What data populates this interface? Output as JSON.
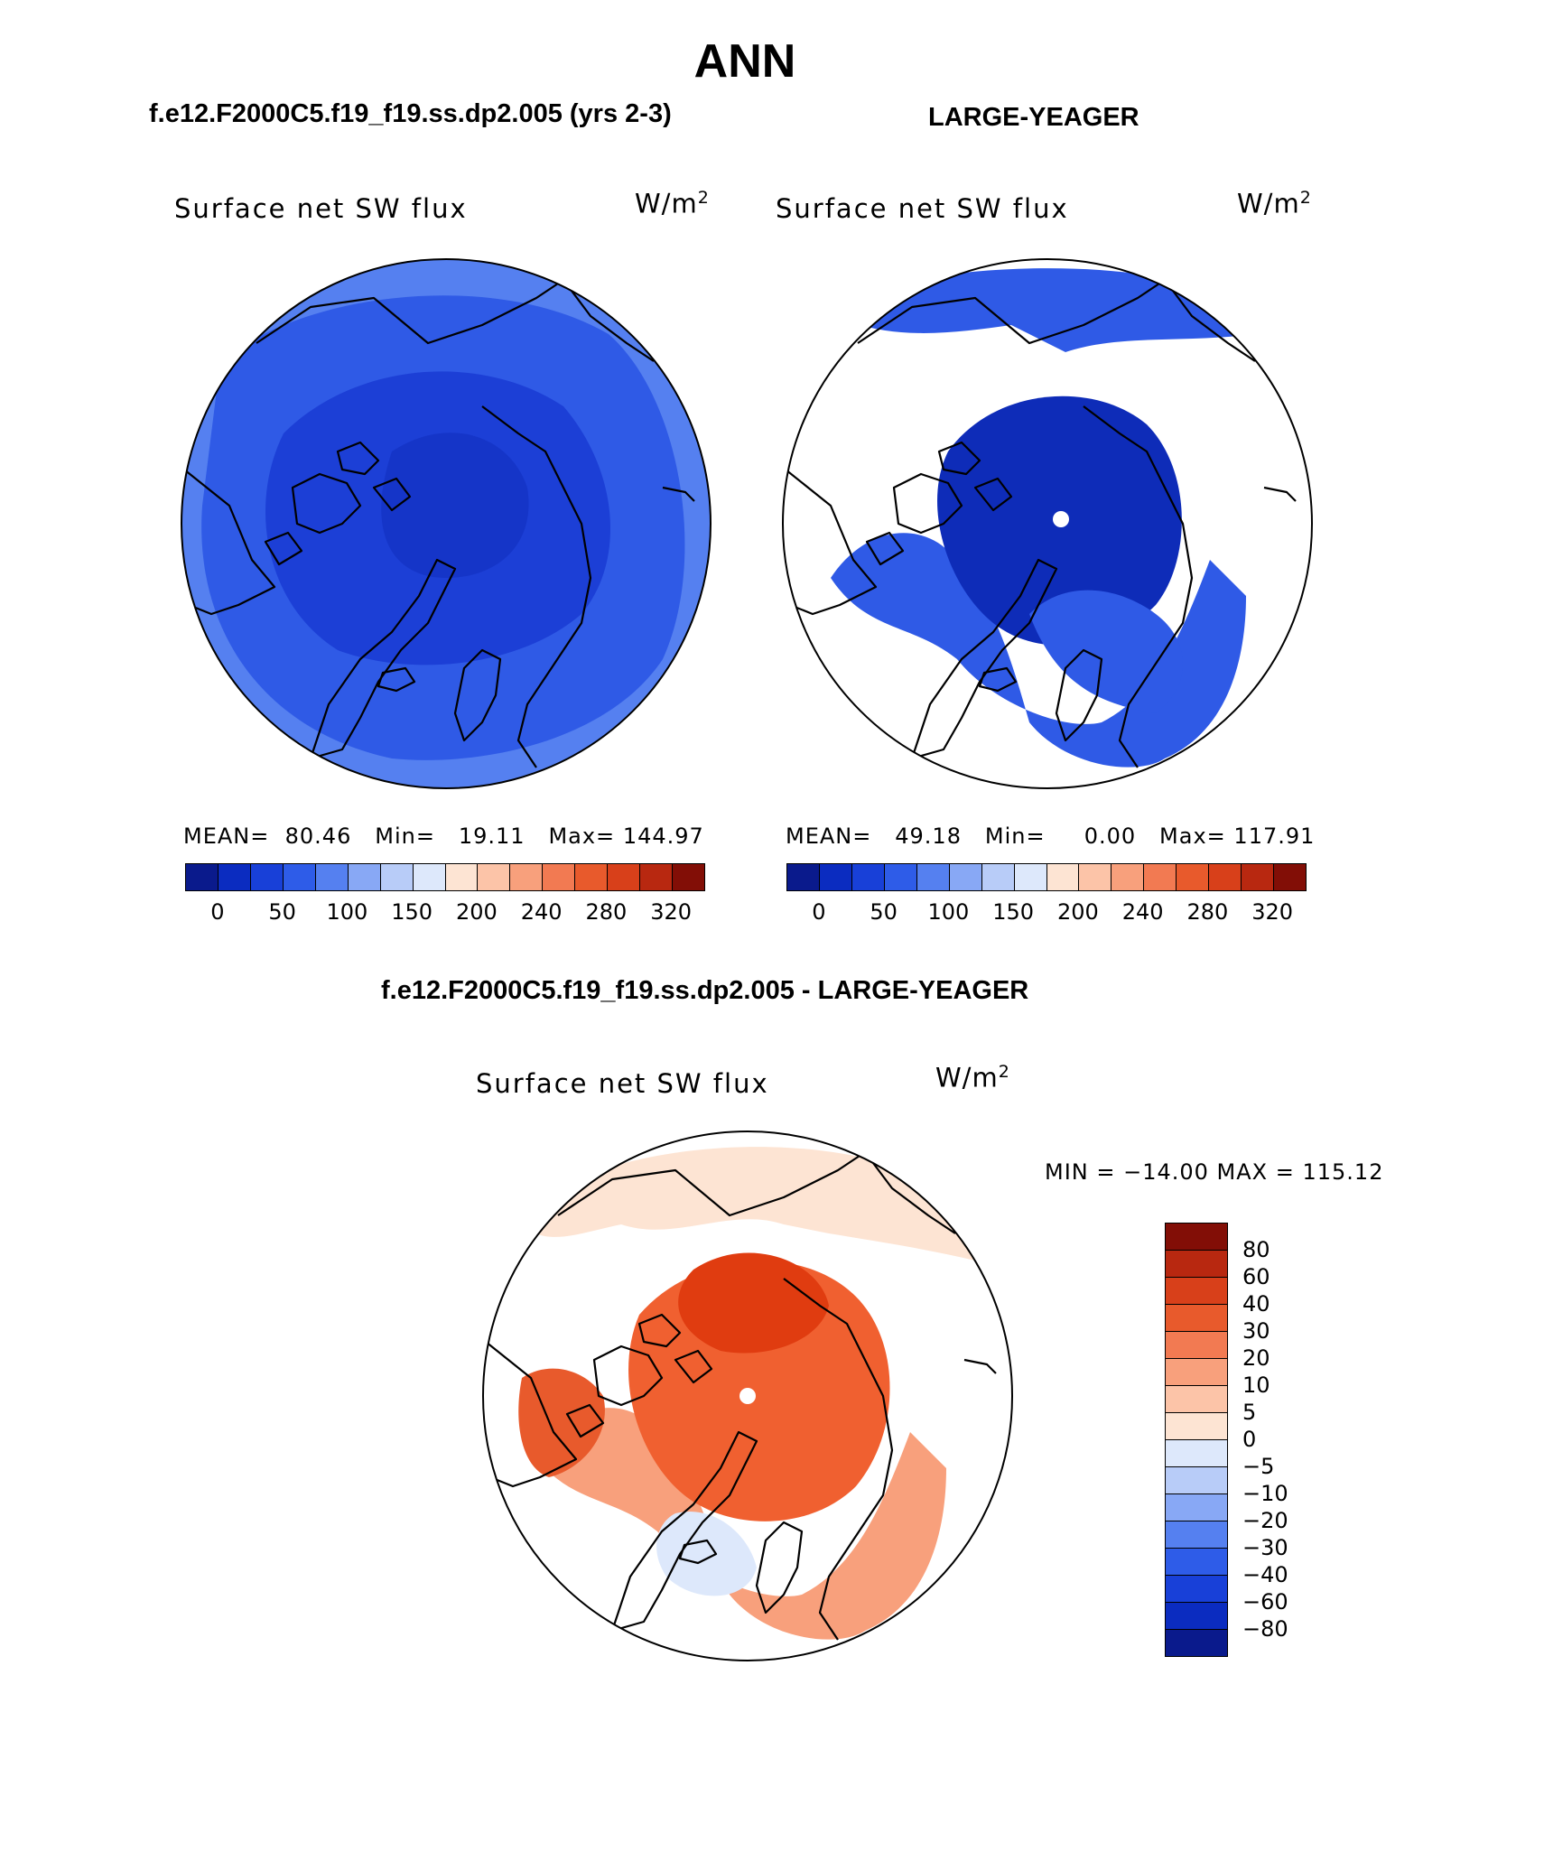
{
  "page_title": "ANN",
  "panels": [
    {
      "case": "f.e12.F2000C5.f19_f19.ss.dp2.005 (yrs 2-3)",
      "variable": "Surface net SW flux",
      "units": "W/m",
      "units_exp": "2",
      "mean_label": "MEAN=",
      "mean_value": "80.46",
      "min_label": "Min=",
      "min_value": "19.11",
      "max_label": "Max=",
      "max_value": "144.97"
    },
    {
      "case": "LARGE-YEAGER",
      "variable": "Surface net SW flux",
      "units": "W/m",
      "units_exp": "2",
      "mean_label": "MEAN=",
      "mean_value": "49.18",
      "min_label": "Min=",
      "min_value": "0.00",
      "max_label": "Max=",
      "max_value": "117.91"
    }
  ],
  "abs_colorbar": {
    "colors": [
      "#0a1a8c",
      "#0b2cc0",
      "#1840d8",
      "#2e5ce8",
      "#5580f0",
      "#88a8f5",
      "#b8ccf8",
      "#dde8fb",
      "#fde4d3",
      "#fcc4a8",
      "#f8a07c",
      "#f27a52",
      "#e85a2c",
      "#d8401a",
      "#b82810",
      "#820e06"
    ],
    "ticks": [
      "0",
      "50",
      "100",
      "150",
      "200",
      "240",
      "280",
      "320"
    ]
  },
  "diff_panel": {
    "title": "f.e12.F2000C5.f19_f19.ss.dp2.005 - LARGE-YEAGER",
    "variable": "Surface net SW flux",
    "units": "W/m",
    "units_exp": "2",
    "minmax_text": "MIN = −14.00 MAX = 115.12"
  },
  "diff_colorbar": {
    "colors": [
      "#820e06",
      "#b82810",
      "#d8401a",
      "#e85a2c",
      "#f27a52",
      "#f8a07c",
      "#fcc4a8",
      "#fde4d3",
      "#dde8fb",
      "#b8ccf8",
      "#88a8f5",
      "#5580f0",
      "#2e5ce8",
      "#1840d8",
      "#0b2cc0",
      "#0a1a8c"
    ],
    "ticks": [
      "80",
      "60",
      "40",
      "30",
      "20",
      "10",
      "5",
      "0",
      "−5",
      "−10",
      "−20",
      "−30",
      "−40",
      "−60",
      "−80"
    ]
  },
  "map_colors": {
    "blue_outer": "#5a88ee",
    "blue_mid": "#2f5ae6",
    "blue_deep": "#1c3fd6",
    "blue_core": "#0e2cb8",
    "red_deep": "#e03c10",
    "red_mid": "#f06030",
    "red_light": "#f9a07c",
    "peach": "#fde4d3",
    "ice_blue": "#dde8fb"
  }
}
